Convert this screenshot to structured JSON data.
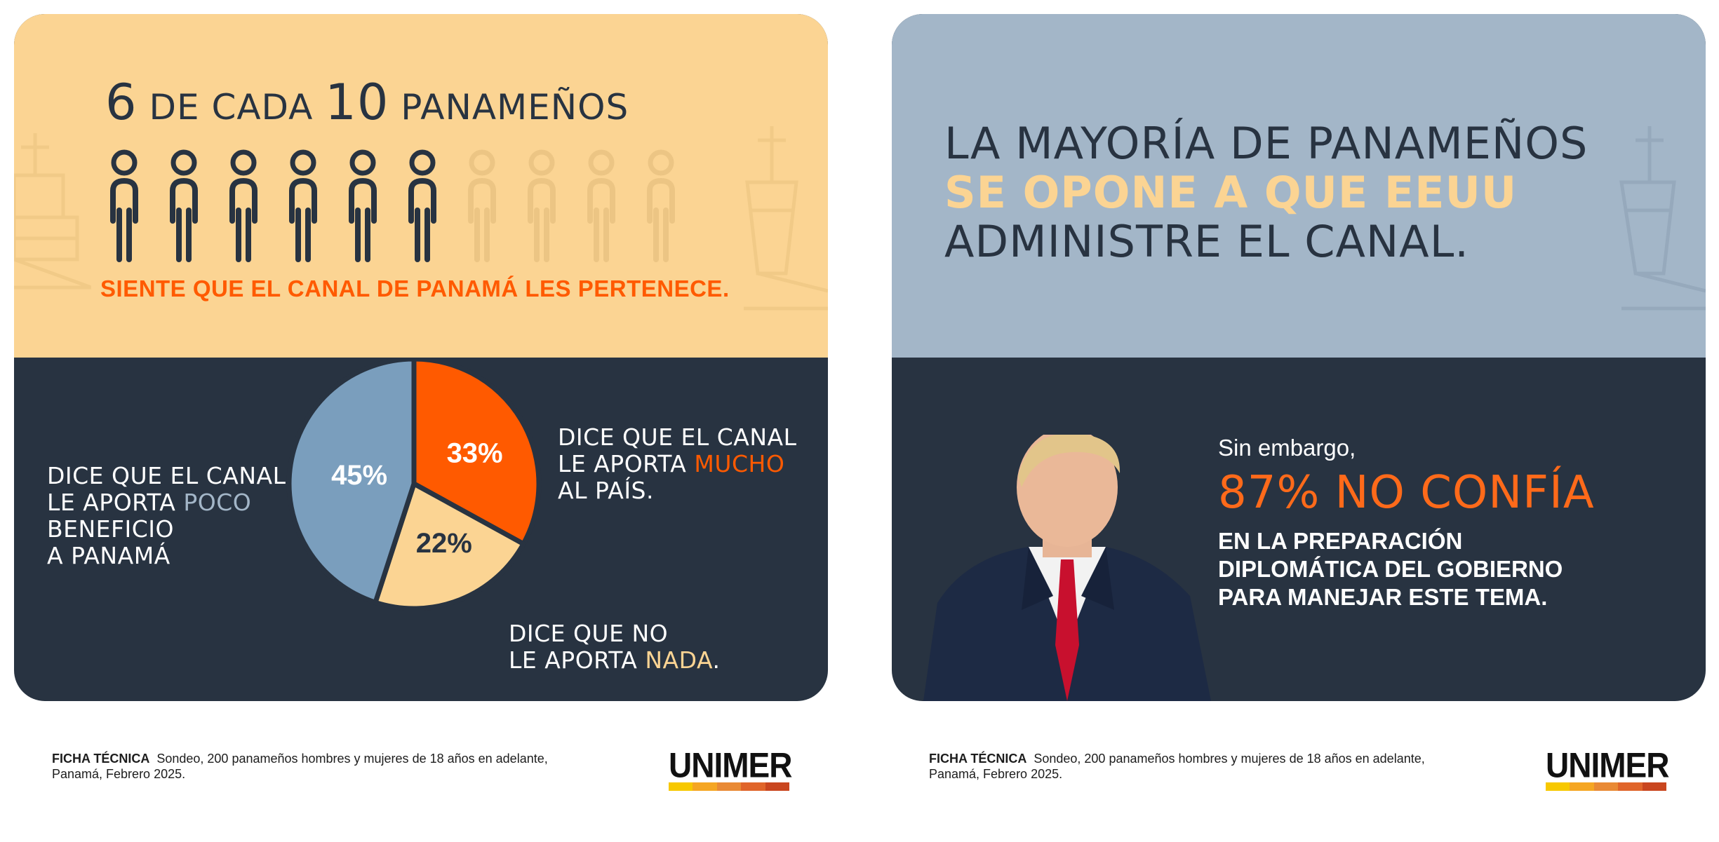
{
  "left_card": {
    "headline": {
      "num1": "6",
      "mid": "de cada",
      "num2": "10",
      "end": "panameños"
    },
    "people_total": 10,
    "people_highlighted": 6,
    "tagline": "SIENTE QUE EL CANAL DE PANAMÁ LES PERTENECE.",
    "label_poco": {
      "l1": "DICE QUE EL CANAL",
      "l2a": "LE APORTA ",
      "l2b": "POCO",
      "l3": "BENEFICIO",
      "l4": "A PANAMÁ"
    },
    "label_mucho": {
      "l1": "DICE QUE EL CANAL",
      "l2a": "LE APORTA ",
      "l2b": "MUCHO",
      "l3": "AL PAÍS."
    },
    "label_nada": {
      "l1": "DICE QUE NO",
      "l2a": "LE APORTA ",
      "l2b": "NADA",
      "l2c": "."
    }
  },
  "right_card": {
    "title_l1": "La mayoría de panameños",
    "title_l2": "SE OPONE A  QUE EEUU",
    "title_l3": "administre el canal.",
    "intro": "Sin embargo,",
    "stat": "87% NO CONFÍA",
    "body_l1": "EN LA PREPARACIÓN",
    "body_l2": "DIPLOMÁTICA DEL GOBIERNO",
    "body_l3": "PARA MANEJAR ESTE TEMA."
  },
  "chart_data": {
    "type": "pie",
    "categories": [
      "Mucho",
      "Nada",
      "Poco"
    ],
    "values": [
      33,
      22,
      45
    ],
    "slice_labels": [
      "33%",
      "22%",
      "45%"
    ],
    "colors": [
      "#ff5a00",
      "#fbd493",
      "#7a9ebd"
    ]
  },
  "footer": {
    "label": "FICHA TÉCNICA",
    "text_l1": "Sondeo, 200 panameños hombres y mujeres de 18 años en adelante,",
    "text_l2": "Panamá, Febrero 2025."
  },
  "logo": {
    "name": "UNIMER",
    "bar_colors": [
      "#f7c800",
      "#f5a623",
      "#e98a35",
      "#e0652a",
      "#c9461f"
    ]
  },
  "colors": {
    "navy": "#283341",
    "cream": "#fbd493",
    "orange": "#ff5a00",
    "slate": "#a3b6c8",
    "pie_blue": "#7a9ebd"
  }
}
